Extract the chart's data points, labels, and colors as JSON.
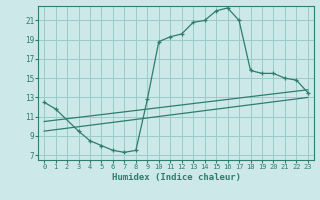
{
  "xlabel": "Humidex (Indice chaleur)",
  "bg_color": "#cce8e8",
  "grid_color": "#99cccc",
  "line_color": "#2e7d6e",
  "xlim": [
    -0.5,
    23.5
  ],
  "ylim": [
    6.5,
    22.5
  ],
  "xticks": [
    0,
    1,
    2,
    3,
    4,
    5,
    6,
    7,
    8,
    9,
    10,
    11,
    12,
    13,
    14,
    15,
    16,
    17,
    18,
    19,
    20,
    21,
    22,
    23
  ],
  "yticks": [
    7,
    9,
    11,
    13,
    15,
    17,
    19,
    21
  ],
  "line1_x": [
    0,
    1,
    3,
    4,
    5,
    6,
    7,
    8,
    9,
    10,
    11,
    12,
    13,
    14,
    15,
    16,
    17,
    18,
    19,
    20,
    21,
    22,
    23
  ],
  "line1_y": [
    12.5,
    11.8,
    9.5,
    8.5,
    8.0,
    7.5,
    7.3,
    7.5,
    12.8,
    18.8,
    19.3,
    19.6,
    20.8,
    21.0,
    22.0,
    22.3,
    21.0,
    15.8,
    15.5,
    15.5,
    15.0,
    14.8,
    13.5
  ],
  "line2_x": [
    0,
    23
  ],
  "line2_y": [
    10.5,
    13.8
  ],
  "line3_x": [
    0,
    23
  ],
  "line3_y": [
    9.5,
    13.0
  ]
}
